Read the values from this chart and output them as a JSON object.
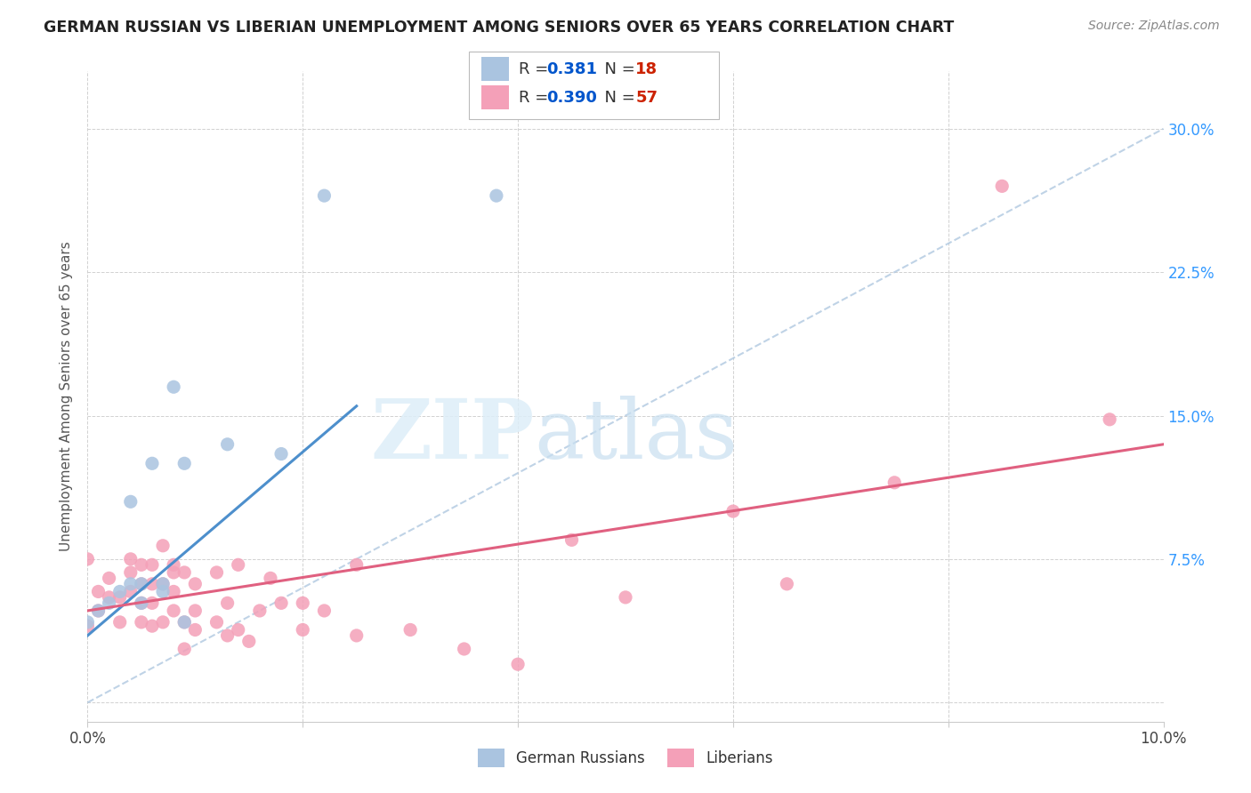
{
  "title": "GERMAN RUSSIAN VS LIBERIAN UNEMPLOYMENT AMONG SENIORS OVER 65 YEARS CORRELATION CHART",
  "source": "Source: ZipAtlas.com",
  "ylabel": "Unemployment Among Seniors over 65 years",
  "xlim": [
    0.0,
    0.1
  ],
  "ylim": [
    -0.01,
    0.33
  ],
  "xtick_vals": [
    0.0,
    0.02,
    0.04,
    0.06,
    0.08,
    0.1
  ],
  "xtick_labels": [
    "0.0%",
    "",
    "",
    "",
    "",
    "10.0%"
  ],
  "ytick_vals": [
    0.0,
    0.075,
    0.15,
    0.225,
    0.3
  ],
  "ytick_labels": [
    "",
    "7.5%",
    "15.0%",
    "22.5%",
    "30.0%"
  ],
  "watermark_zip": "ZIP",
  "watermark_atlas": "atlas",
  "german_russian": {
    "label": "German Russians",
    "color": "#aac4e0",
    "R": 0.381,
    "N": 18,
    "x": [
      0.0,
      0.001,
      0.002,
      0.003,
      0.004,
      0.004,
      0.005,
      0.005,
      0.006,
      0.007,
      0.007,
      0.008,
      0.009,
      0.009,
      0.013,
      0.018,
      0.022,
      0.038
    ],
    "y": [
      0.042,
      0.048,
      0.052,
      0.058,
      0.062,
      0.105,
      0.052,
      0.062,
      0.125,
      0.058,
      0.062,
      0.165,
      0.125,
      0.042,
      0.135,
      0.13,
      0.265,
      0.265
    ]
  },
  "liberian": {
    "label": "Liberians",
    "color": "#f4a0b8",
    "R": 0.39,
    "N": 57,
    "x": [
      0.0,
      0.0,
      0.001,
      0.001,
      0.002,
      0.002,
      0.003,
      0.003,
      0.004,
      0.004,
      0.004,
      0.005,
      0.005,
      0.005,
      0.005,
      0.006,
      0.006,
      0.006,
      0.006,
      0.007,
      0.007,
      0.007,
      0.008,
      0.008,
      0.008,
      0.008,
      0.009,
      0.009,
      0.009,
      0.01,
      0.01,
      0.01,
      0.012,
      0.012,
      0.013,
      0.013,
      0.014,
      0.014,
      0.015,
      0.016,
      0.017,
      0.018,
      0.02,
      0.02,
      0.022,
      0.025,
      0.025,
      0.03,
      0.035,
      0.04,
      0.045,
      0.05,
      0.06,
      0.065,
      0.075,
      0.085,
      0.095
    ],
    "y": [
      0.04,
      0.075,
      0.048,
      0.058,
      0.055,
      0.065,
      0.055,
      0.042,
      0.058,
      0.068,
      0.075,
      0.042,
      0.052,
      0.062,
      0.072,
      0.04,
      0.052,
      0.062,
      0.072,
      0.042,
      0.062,
      0.082,
      0.048,
      0.058,
      0.068,
      0.072,
      0.028,
      0.042,
      0.068,
      0.038,
      0.048,
      0.062,
      0.068,
      0.042,
      0.052,
      0.035,
      0.072,
      0.038,
      0.032,
      0.048,
      0.065,
      0.052,
      0.038,
      0.052,
      0.048,
      0.035,
      0.072,
      0.038,
      0.028,
      0.02,
      0.085,
      0.055,
      0.1,
      0.062,
      0.115,
      0.27,
      0.148
    ]
  },
  "trend_german_solid": {
    "x": [
      0.0,
      0.025
    ],
    "y": [
      0.035,
      0.155
    ],
    "color": "#4d8fcc",
    "linewidth": 2.2
  },
  "trend_liberian_solid": {
    "x": [
      0.0,
      0.1
    ],
    "y": [
      0.048,
      0.135
    ],
    "color": "#e06080",
    "linewidth": 2.2
  },
  "diagonal_dashed": {
    "x": [
      0.0,
      0.1
    ],
    "y": [
      0.0,
      0.3
    ],
    "color": "#b0c8e0",
    "linewidth": 1.5
  },
  "legend_R_color": "#0055cc",
  "legend_N_color": "#cc2200",
  "background_color": "#ffffff",
  "grid_color": "#cccccc"
}
